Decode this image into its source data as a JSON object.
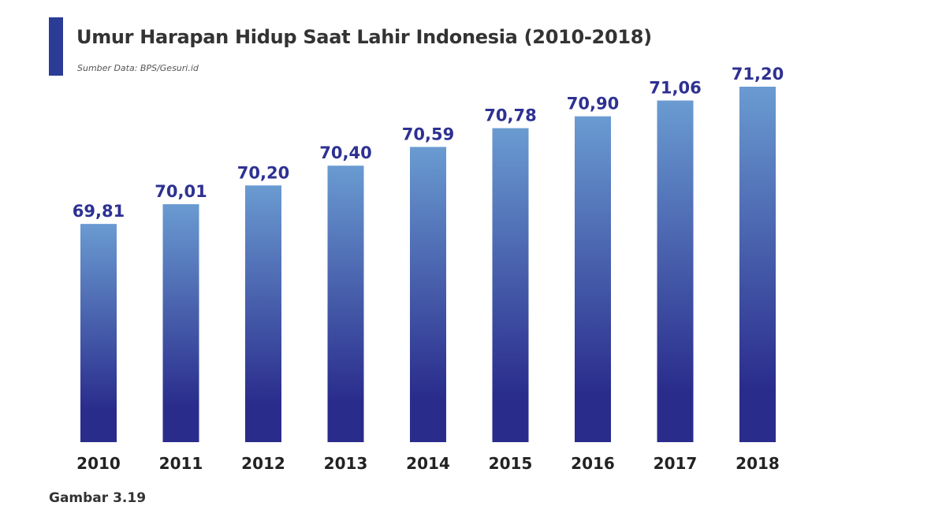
{
  "header": {
    "title": "Umur Harapan Hidup Saat Lahir Indonesia (2010-2018)",
    "source": "Sumber Data: BPS/Gesuri.id"
  },
  "caption": "Gambar 3.19",
  "colors": {
    "accent": "#2b3c96",
    "bar_top": "#6a9bd1",
    "bar_bottom": "#2a2c8c",
    "value_label": "#2e3192"
  },
  "chart_data": {
    "type": "bar",
    "title": "Umur Harapan Hidup Saat Lahir Indonesia (2010-2018)",
    "xlabel": "",
    "ylabel": "",
    "categories": [
      "2010",
      "2011",
      "2012",
      "2013",
      "2014",
      "2015",
      "2016",
      "2017",
      "2018"
    ],
    "values": [
      69.81,
      70.01,
      70.2,
      70.4,
      70.59,
      70.78,
      70.9,
      71.06,
      71.2
    ],
    "value_labels": [
      "69,81",
      "70,01",
      "70,20",
      "70,40",
      "70,59",
      "70,78",
      "70,90",
      "71,06",
      "71,20"
    ],
    "ylim": [
      67.6,
      71.2
    ],
    "grid": false,
    "legend": "none"
  }
}
